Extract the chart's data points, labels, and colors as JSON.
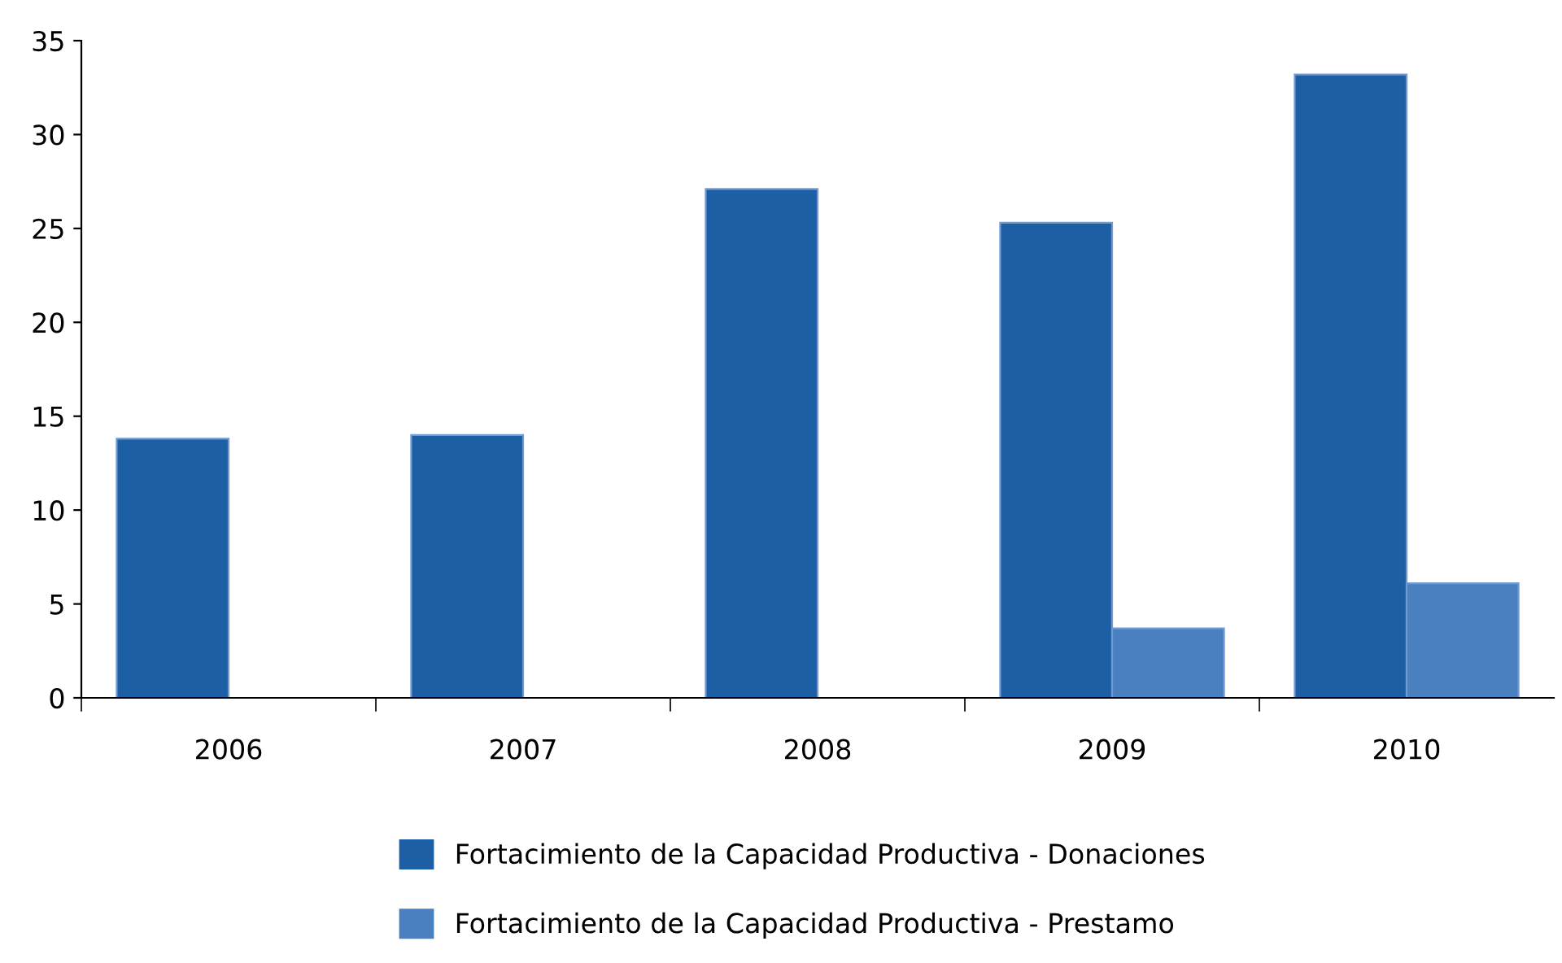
{
  "chart_data": {
    "type": "bar",
    "categories": [
      "2006",
      "2007",
      "2008",
      "2009",
      "2010"
    ],
    "series": [
      {
        "name": "Fortacimiento de la Capacidad Productiva - Donaciones",
        "color": "#1c5fa5",
        "values": [
          13.8,
          14.0,
          27.1,
          25.3,
          33.2
        ]
      },
      {
        "name": "Fortacimiento de la Capacidad Productiva - Prestamo",
        "color": "#4a80c0",
        "values": [
          null,
          null,
          null,
          3.7,
          6.1
        ]
      }
    ],
    "ylim": [
      0,
      35
    ],
    "yticks": [
      0,
      5,
      10,
      15,
      20,
      25,
      30,
      35
    ],
    "grid": false,
    "legend": "bottom"
  }
}
